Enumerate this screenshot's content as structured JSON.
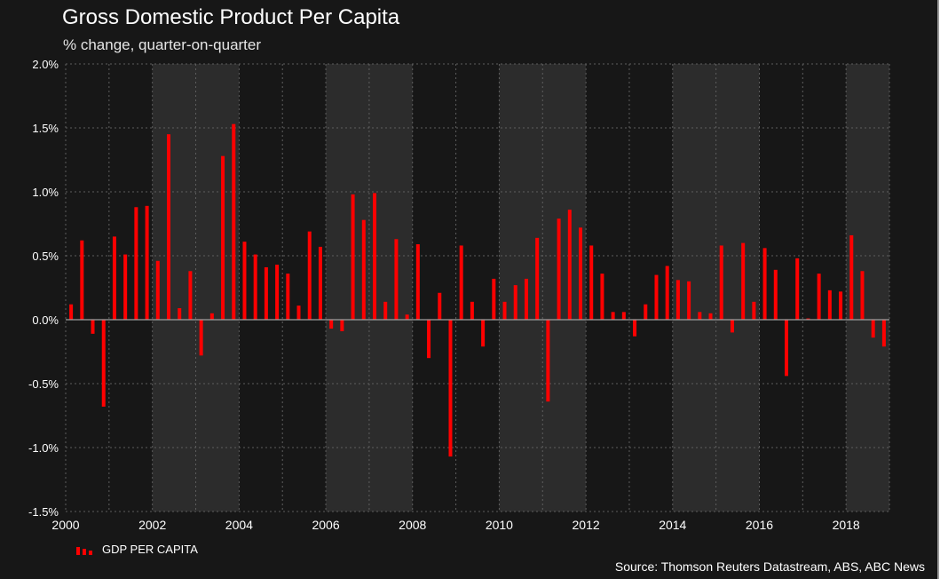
{
  "title": "Gross Domestic Product Per Capita",
  "subtitle": "% change, quarter-on-quarter",
  "source": "Source: Thomson Reuters Datastream, ABS, ABC News",
  "legend": {
    "label": "GDP PER CAPITA"
  },
  "colors": {
    "background": "#171717",
    "band": "#2c2c2c",
    "bar": "#ff0000",
    "grid": "#5e5e5e",
    "zero_line": "#a0a0a0"
  },
  "chart_data": {
    "type": "bar",
    "title": "Gross Domestic Product Per Capita",
    "subtitle": "% change, quarter-on-quarter",
    "xlabel": "",
    "ylabel": "",
    "ylim": [
      -1.5,
      2.0
    ],
    "xlim": [
      "2000-Q1",
      "2019-Q1"
    ],
    "yticks": [
      2.0,
      1.5,
      1.0,
      0.5,
      0.0,
      -0.5,
      -1.0,
      -1.5
    ],
    "ytick_labels": [
      "2.0%",
      "1.5%",
      "1.0%",
      "0.5%",
      "0.0%",
      "-0.5%",
      "-1.0%",
      "-1.5%"
    ],
    "xtick_labels": [
      "2000",
      "2002",
      "2004",
      "2006",
      "2008",
      "2010",
      "2012",
      "2014",
      "2016",
      "2018"
    ],
    "grid": true,
    "shaded_bands": [
      [
        "2002",
        "2004"
      ],
      [
        "2006",
        "2008"
      ],
      [
        "2010",
        "2012"
      ],
      [
        "2014",
        "2016"
      ],
      [
        "2018",
        "2019"
      ]
    ],
    "legend_position": "bottom-left",
    "series": [
      {
        "name": "GDP PER CAPITA",
        "color": "#ff0000",
        "categories": [
          "2000-Q1",
          "2000-Q2",
          "2000-Q3",
          "2000-Q4",
          "2001-Q1",
          "2001-Q2",
          "2001-Q3",
          "2001-Q4",
          "2002-Q1",
          "2002-Q2",
          "2002-Q3",
          "2002-Q4",
          "2003-Q1",
          "2003-Q2",
          "2003-Q3",
          "2003-Q4",
          "2004-Q1",
          "2004-Q2",
          "2004-Q3",
          "2004-Q4",
          "2005-Q1",
          "2005-Q2",
          "2005-Q3",
          "2005-Q4",
          "2006-Q1",
          "2006-Q2",
          "2006-Q3",
          "2006-Q4",
          "2007-Q1",
          "2007-Q2",
          "2007-Q3",
          "2007-Q4",
          "2008-Q1",
          "2008-Q2",
          "2008-Q3",
          "2008-Q4",
          "2009-Q1",
          "2009-Q2",
          "2009-Q3",
          "2009-Q4",
          "2010-Q1",
          "2010-Q2",
          "2010-Q3",
          "2010-Q4",
          "2011-Q1",
          "2011-Q2",
          "2011-Q3",
          "2011-Q4",
          "2012-Q1",
          "2012-Q2",
          "2012-Q3",
          "2012-Q4",
          "2013-Q1",
          "2013-Q2",
          "2013-Q3",
          "2013-Q4",
          "2014-Q1",
          "2014-Q2",
          "2014-Q3",
          "2014-Q4",
          "2015-Q1",
          "2015-Q2",
          "2015-Q3",
          "2015-Q4",
          "2016-Q1",
          "2016-Q2",
          "2016-Q3",
          "2016-Q4",
          "2017-Q1",
          "2017-Q2",
          "2017-Q3",
          "2017-Q4",
          "2018-Q1",
          "2018-Q2",
          "2018-Q3",
          "2018-Q4"
        ],
        "values": [
          0.12,
          0.62,
          -0.11,
          -0.68,
          0.65,
          0.51,
          0.88,
          0.89,
          0.46,
          1.45,
          0.09,
          0.38,
          -0.28,
          0.05,
          1.28,
          1.53,
          0.61,
          0.51,
          0.41,
          0.43,
          0.36,
          0.11,
          0.69,
          0.57,
          -0.07,
          -0.09,
          0.98,
          0.78,
          0.99,
          0.14,
          0.63,
          0.04,
          0.59,
          -0.3,
          0.21,
          -1.07,
          0.58,
          0.14,
          -0.21,
          0.32,
          0.14,
          0.27,
          0.32,
          0.64,
          -0.64,
          0.79,
          0.86,
          0.72,
          0.58,
          0.36,
          0.06,
          0.06,
          -0.13,
          0.12,
          0.35,
          0.42,
          0.31,
          0.3,
          0.06,
          0.05,
          0.58,
          -0.1,
          0.6,
          0.14,
          0.56,
          0.39,
          -0.44,
          0.48,
          0.01,
          0.36,
          0.23,
          0.22,
          0.66,
          0.38,
          -0.14,
          -0.21
        ]
      }
    ]
  }
}
